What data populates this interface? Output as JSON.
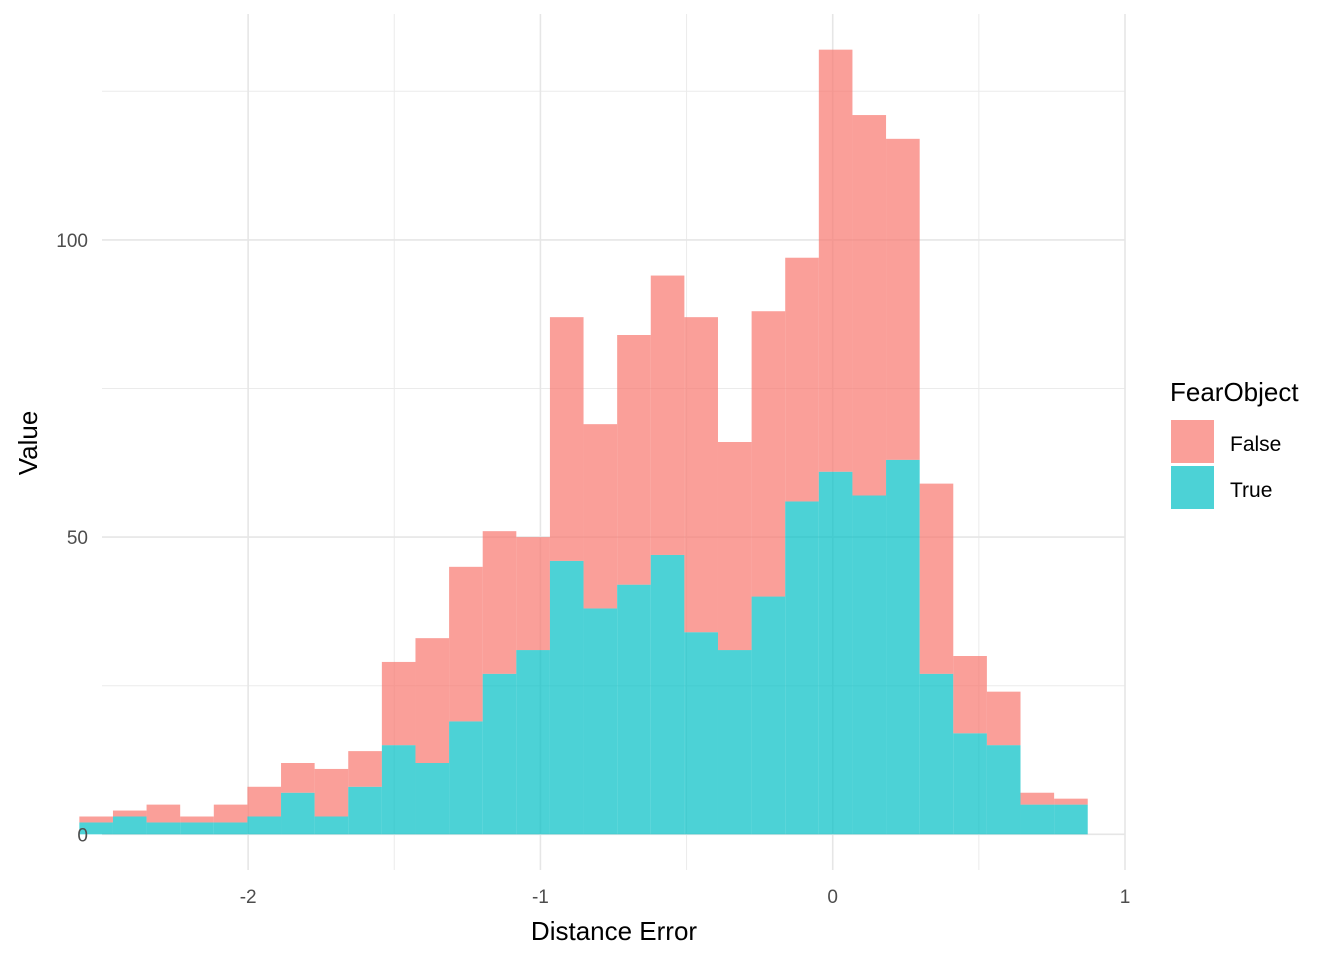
{
  "chart_data": {
    "type": "bar",
    "subtype": "overlaid-histogram",
    "xlabel": "Distance Error",
    "ylabel": "Value",
    "xlim": [
      -2.5,
      1.0
    ],
    "ylim": [
      -6,
      138
    ],
    "xticks": [
      -2,
      -1,
      0,
      1
    ],
    "xtick_labels": [
      "-2",
      "-1",
      "0",
      "1"
    ],
    "yticks": [
      0,
      50,
      100
    ],
    "ytick_labels": [
      "0",
      "50",
      "100"
    ],
    "grid": true,
    "legend": {
      "title": "FearObject",
      "position": "right"
    },
    "bin_width": 0.115,
    "bin_centers": [
      -2.52,
      -2.405,
      -2.29,
      -2.175,
      -2.06,
      -1.945,
      -1.83,
      -1.715,
      -1.6,
      -1.485,
      -1.37,
      -1.255,
      -1.14,
      -1.025,
      -0.91,
      -0.795,
      -0.68,
      -0.565,
      -0.45,
      -0.335,
      -0.22,
      -0.105,
      0.01,
      0.125,
      0.24,
      0.355,
      0.47,
      0.585,
      0.7,
      0.815
    ],
    "series": [
      {
        "name": "False",
        "color": "#F8766D",
        "values": [
          1,
          1,
          3,
          1,
          3,
          5,
          5,
          8,
          6,
          14,
          21,
          26,
          24,
          19,
          41,
          31,
          42,
          47,
          53,
          35,
          48,
          41,
          71,
          64,
          54,
          32,
          13,
          9,
          2,
          1
        ]
      },
      {
        "name": "True",
        "color": "#00BFC4",
        "values": [
          2,
          3,
          2,
          2,
          2,
          3,
          7,
          3,
          8,
          15,
          12,
          19,
          27,
          31,
          46,
          38,
          42,
          47,
          34,
          31,
          40,
          56,
          61,
          57,
          63,
          27,
          17,
          15,
          5,
          5
        ]
      }
    ]
  }
}
